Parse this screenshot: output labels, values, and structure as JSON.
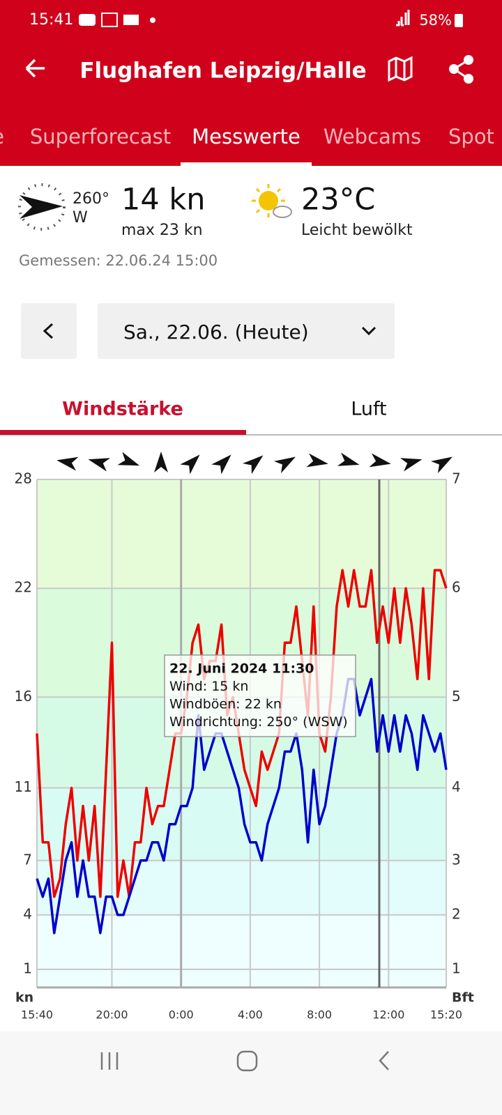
{
  "status": {
    "time": "15:41",
    "battery": "58%"
  },
  "header": {
    "title": "Flughafen Leipzig/Halle"
  },
  "tabs": [
    "e",
    "Superforecast",
    "Messwerte",
    "Webcams",
    "Spot"
  ],
  "current": {
    "direction": "260°",
    "direction_name": "W",
    "wind": "14 kn",
    "gust": "max 23 kn",
    "temperature": "23°C",
    "sky": "Leicht bewölkt",
    "measured": "Gemessen: 22.06.24 15:00"
  },
  "date_selector": {
    "label": "Sa., 22.06. (Heute)"
  },
  "chart_tabs": [
    "Windstärke",
    "Luft"
  ],
  "tooltip": [
    "22. Juni 2024 11:30",
    "Wind: 15 kn",
    "Windböen: 22 kn",
    "Windrichtung: 250° (WSW)"
  ],
  "chart_data": {
    "type": "line",
    "ylabel": "kn",
    "y2label": "Bft",
    "ylim": [
      0,
      28
    ],
    "yticks": [
      1,
      4,
      7,
      11,
      16,
      22,
      28
    ],
    "y2ticks": [
      1,
      2,
      3,
      4,
      5,
      6,
      7
    ],
    "grid": true,
    "categories": [
      "15:40",
      null,
      null,
      null,
      null,
      null,
      null,
      null,
      null,
      null,
      null,
      null,
      null,
      "20:00",
      null,
      null,
      null,
      null,
      null,
      null,
      null,
      null,
      null,
      null,
      null,
      "0:00",
      null,
      null,
      null,
      null,
      null,
      null,
      null,
      null,
      null,
      null,
      null,
      "4:00",
      null,
      null,
      null,
      null,
      null,
      null,
      null,
      null,
      null,
      null,
      null,
      "8:00",
      null,
      null,
      null,
      null,
      null,
      null,
      null,
      null,
      null,
      null,
      null,
      "12:00",
      null,
      null,
      null,
      null,
      null,
      null,
      null,
      null,
      null,
      "15:20"
    ],
    "series": [
      {
        "color": "#ee0000",
        "values": [
          14,
          8,
          8,
          5,
          6,
          9,
          11,
          7,
          10,
          7,
          10,
          5,
          12,
          19,
          5,
          7,
          5,
          8,
          8,
          11,
          9,
          10,
          10,
          12,
          14,
          14,
          16,
          19,
          20,
          17,
          18,
          18,
          20,
          15,
          16,
          14,
          12,
          11,
          10,
          13,
          12,
          13,
          14,
          19,
          19,
          21,
          18,
          15,
          21,
          14,
          13,
          16,
          21,
          23,
          21,
          23,
          21,
          21,
          23,
          19,
          21,
          19,
          22,
          19,
          22,
          20,
          17,
          22,
          17,
          23,
          23,
          22
        ]
      },
      {
        "color": "#0000cc",
        "values": [
          6,
          5,
          6,
          3,
          5,
          7,
          8,
          5,
          7,
          5,
          5,
          3,
          5,
          5,
          4,
          4,
          5,
          6,
          7,
          7,
          8,
          8,
          7,
          9,
          9,
          10,
          10,
          11,
          15,
          12,
          13,
          14,
          14,
          13,
          12,
          11,
          9,
          8,
          8,
          7,
          9,
          10,
          11,
          13,
          13,
          14,
          12,
          8,
          12,
          9,
          10,
          12,
          14,
          15,
          17,
          17,
          15,
          16,
          17,
          13,
          15,
          13,
          15,
          13,
          15,
          14,
          12,
          15,
          14,
          13,
          14,
          12
        ]
      }
    ],
    "directions": [
      100,
      105,
      290,
      180,
      225,
      225,
      230,
      240,
      280,
      285,
      280,
      255,
      240
    ]
  }
}
